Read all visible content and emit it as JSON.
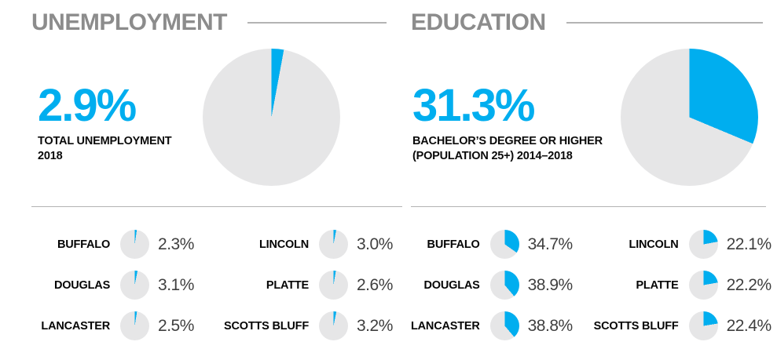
{
  "colors": {
    "accent": "#00AEEF",
    "pie_bg": "#E6E6E7",
    "header_text": "#8C8C8C",
    "rule": "#B3B3B3",
    "value_text": "#3F3F3F"
  },
  "sections": [
    {
      "id": "unemployment",
      "title": "UNEMPLOYMENT",
      "stat": "2.9%",
      "stat_value": 2.9,
      "caption_lines": [
        "TOTAL UNEMPLOYMENT",
        "2018"
      ],
      "counties": [
        {
          "name": "BUFFALO",
          "value": 2.3,
          "label": "2.3%"
        },
        {
          "name": "LINCOLN",
          "value": 3.0,
          "label": "3.0%"
        },
        {
          "name": "DOUGLAS",
          "value": 3.1,
          "label": "3.1%"
        },
        {
          "name": "PLATTE",
          "value": 2.6,
          "label": "2.6%"
        },
        {
          "name": "LANCASTER",
          "value": 2.5,
          "label": "2.5%"
        },
        {
          "name": "SCOTTS BLUFF",
          "value": 3.2,
          "label": "3.2%"
        }
      ]
    },
    {
      "id": "education",
      "title": "EDUCATION",
      "stat": "31.3%",
      "stat_value": 31.3,
      "caption_lines": [
        "BACHELOR’S DEGREE OR HIGHER",
        "(POPULATION 25+) 2014–2018"
      ],
      "counties": [
        {
          "name": "BUFFALO",
          "value": 34.7,
          "label": "34.7%"
        },
        {
          "name": "LINCOLN",
          "value": 22.1,
          "label": "22.1%"
        },
        {
          "name": "DOUGLAS",
          "value": 38.9,
          "label": "38.9%"
        },
        {
          "name": "PLATTE",
          "value": 22.2,
          "label": "22.2%"
        },
        {
          "name": "LANCASTER",
          "value": 38.8,
          "label": "38.8%"
        },
        {
          "name": "SCOTTS BLUFF",
          "value": 22.4,
          "label": "22.4%"
        }
      ]
    }
  ],
  "chart_data": [
    {
      "type": "pie",
      "title": "UNEMPLOYMENT",
      "subtitle": "TOTAL UNEMPLOYMENT 2018",
      "highlight_pct": 2.9,
      "slices": [
        {
          "label": "unemployed",
          "value": 2.9
        },
        {
          "label": "remainder",
          "value": 97.1
        }
      ],
      "start_angle_deg": 0,
      "direction": "clockwise",
      "legend": "none",
      "county_pies": [
        {
          "county": "BUFFALO",
          "value": 2.3
        },
        {
          "county": "LINCOLN",
          "value": 3.0
        },
        {
          "county": "DOUGLAS",
          "value": 3.1
        },
        {
          "county": "PLATTE",
          "value": 2.6
        },
        {
          "county": "LANCASTER",
          "value": 2.5
        },
        {
          "county": "SCOTTS BLUFF",
          "value": 3.2
        }
      ]
    },
    {
      "type": "pie",
      "title": "EDUCATION",
      "subtitle": "BACHELOR’S DEGREE OR HIGHER (POPULATION 25+) 2014–2018",
      "highlight_pct": 31.3,
      "slices": [
        {
          "label": "bachelor's degree or higher",
          "value": 31.3
        },
        {
          "label": "remainder",
          "value": 68.7
        }
      ],
      "start_angle_deg": 0,
      "direction": "clockwise",
      "legend": "none",
      "county_pies": [
        {
          "county": "BUFFALO",
          "value": 34.7
        },
        {
          "county": "LINCOLN",
          "value": 22.1
        },
        {
          "county": "DOUGLAS",
          "value": 38.9
        },
        {
          "county": "PLATTE",
          "value": 22.2
        },
        {
          "county": "LANCASTER",
          "value": 38.8
        },
        {
          "county": "SCOTTS BLUFF",
          "value": 22.4
        }
      ]
    }
  ]
}
